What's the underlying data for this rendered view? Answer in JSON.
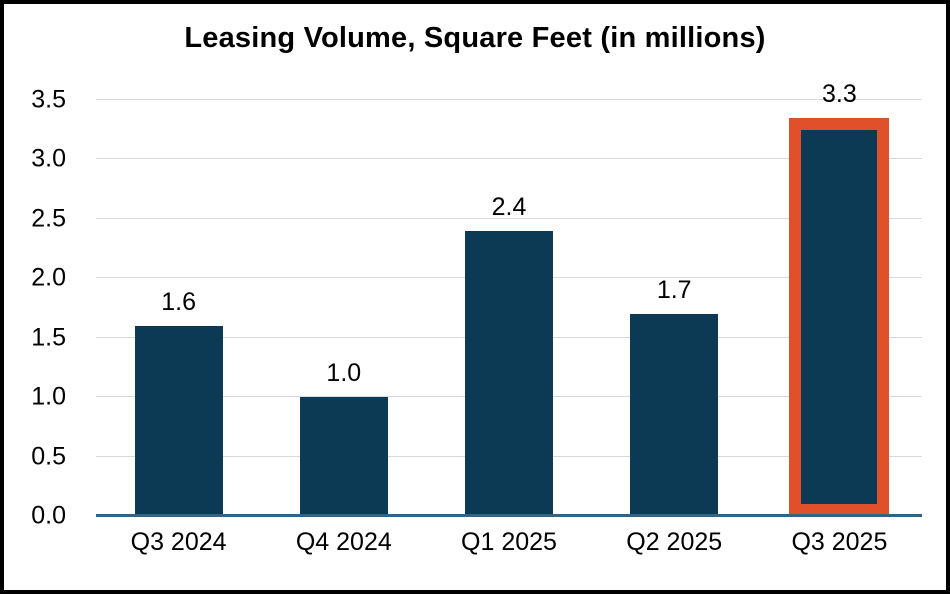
{
  "chart_data": {
    "type": "bar",
    "title": "Leasing Volume, Square Feet (in millions)",
    "categories": [
      "Q3 2024",
      "Q4 2024",
      "Q1 2025",
      "Q2 2025",
      "Q3 2025"
    ],
    "values": [
      1.6,
      1.0,
      2.4,
      1.7,
      3.3
    ],
    "data_labels": [
      "1.6",
      "1.0",
      "2.4",
      "1.7",
      "3.3"
    ],
    "xlabel": "",
    "ylabel": "",
    "ylim": [
      0,
      3.5
    ],
    "ytick_step": 0.5,
    "yticks": [
      "0.0",
      "0.5",
      "1.0",
      "1.5",
      "2.0",
      "2.5",
      "3.0",
      "3.5"
    ],
    "grid": "horizontal",
    "legend": "none",
    "bar_color": "#0C3A55",
    "gridline_color": "#D9D9D9",
    "axis_line_color": "#336382",
    "outer_border_color": "#000000",
    "highlight": {
      "category": "Q3 2025",
      "index": 4,
      "border_color": "#E0512B"
    }
  }
}
